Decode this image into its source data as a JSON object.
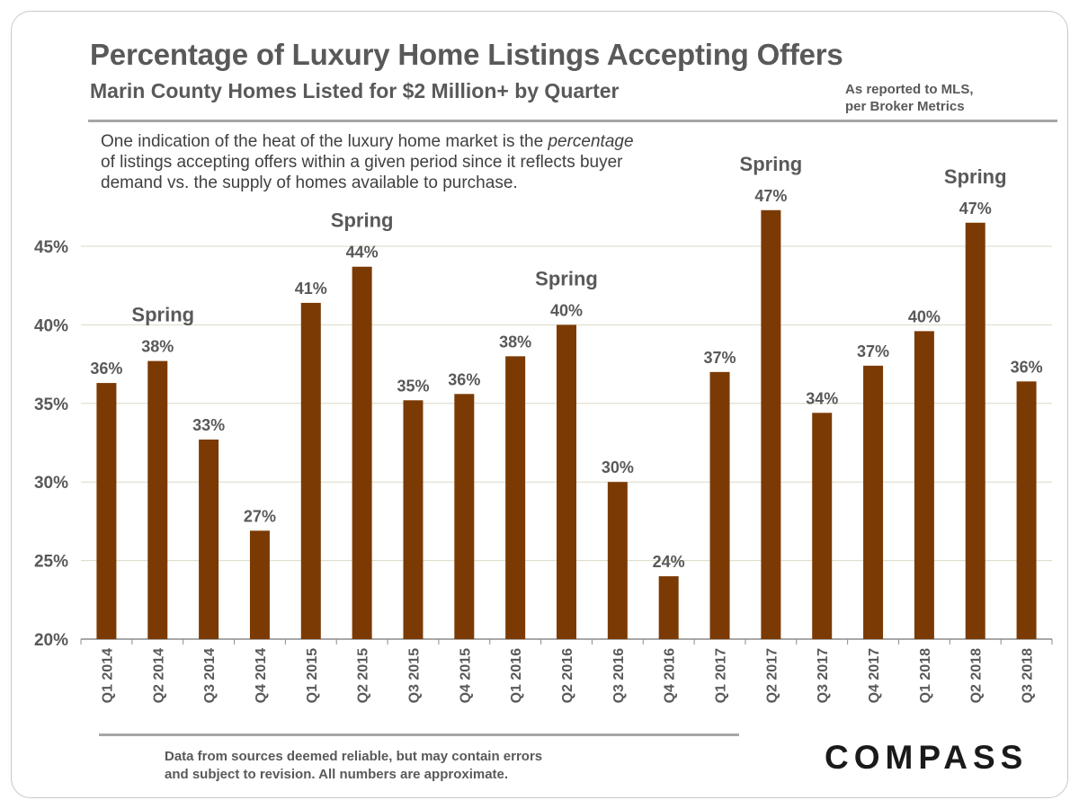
{
  "header": {
    "title": "Percentage of Luxury Home Listings Accepting Offers",
    "subtitle": "Marin County Homes Listed for $2 Million+  by Quarter",
    "source_line1": "As reported to MLS,",
    "source_line2": "per Broker Metrics"
  },
  "description": {
    "line1_before": "One indication of the heat of the luxury home market is the ",
    "line1_emph": "percentage",
    "line2": "of listings accepting offers within a given period since it reflects buyer",
    "line3": "demand vs. the supply of homes available to purchase."
  },
  "footer": {
    "disclaimer_line1": "Data from sources deemed reliable, but may contain errors",
    "disclaimer_line2": "and subject to revision. All numbers are approximate.",
    "logo": "COMPASS"
  },
  "colors": {
    "bar": "#7b3a04",
    "text": "#595959",
    "grid": "#d9d9c3",
    "axis": "#8c8c8c"
  },
  "chart_data": {
    "type": "bar",
    "categories": [
      "Q1 2014",
      "Q2 2014",
      "Q3 2014",
      "Q4 2014",
      "Q1 2015",
      "Q2 2015",
      "Q3 2015",
      "Q4 2015",
      "Q1  2016",
      "Q2 2016",
      "Q3 2016",
      "Q4 2016",
      "Q1 2017",
      "Q2 2017",
      "Q3 2017",
      "Q4 2017",
      "Q1 2018",
      "Q2 2018",
      "Q3 2018"
    ],
    "values": [
      36.3,
      37.7,
      32.7,
      26.9,
      41.4,
      43.7,
      35.2,
      35.6,
      38.0,
      40.0,
      30.0,
      24.0,
      37.0,
      47.3,
      34.4,
      37.4,
      39.6,
      46.5,
      36.4
    ],
    "data_labels": [
      "36%",
      "38%",
      "33%",
      "27%",
      "41%",
      "44%",
      "35%",
      "36%",
      "38%",
      "40%",
      "30%",
      "24%",
      "37%",
      "47%",
      "34%",
      "37%",
      "40%",
      "47%",
      "36%"
    ],
    "ylim": [
      20,
      48
    ],
    "yticks": [
      20,
      25,
      30,
      35,
      40,
      45
    ],
    "ytick_labels": [
      "20%",
      "25%",
      "30%",
      "35%",
      "40%",
      "45%"
    ],
    "grid": true,
    "annotations": [
      {
        "text": "Spring",
        "category_index": 1
      },
      {
        "text": "Spring",
        "category_index": 5
      },
      {
        "text": "Spring",
        "category_index": 9
      },
      {
        "text": "Spring",
        "category_index": 13
      },
      {
        "text": "Spring",
        "category_index": 17
      }
    ]
  }
}
